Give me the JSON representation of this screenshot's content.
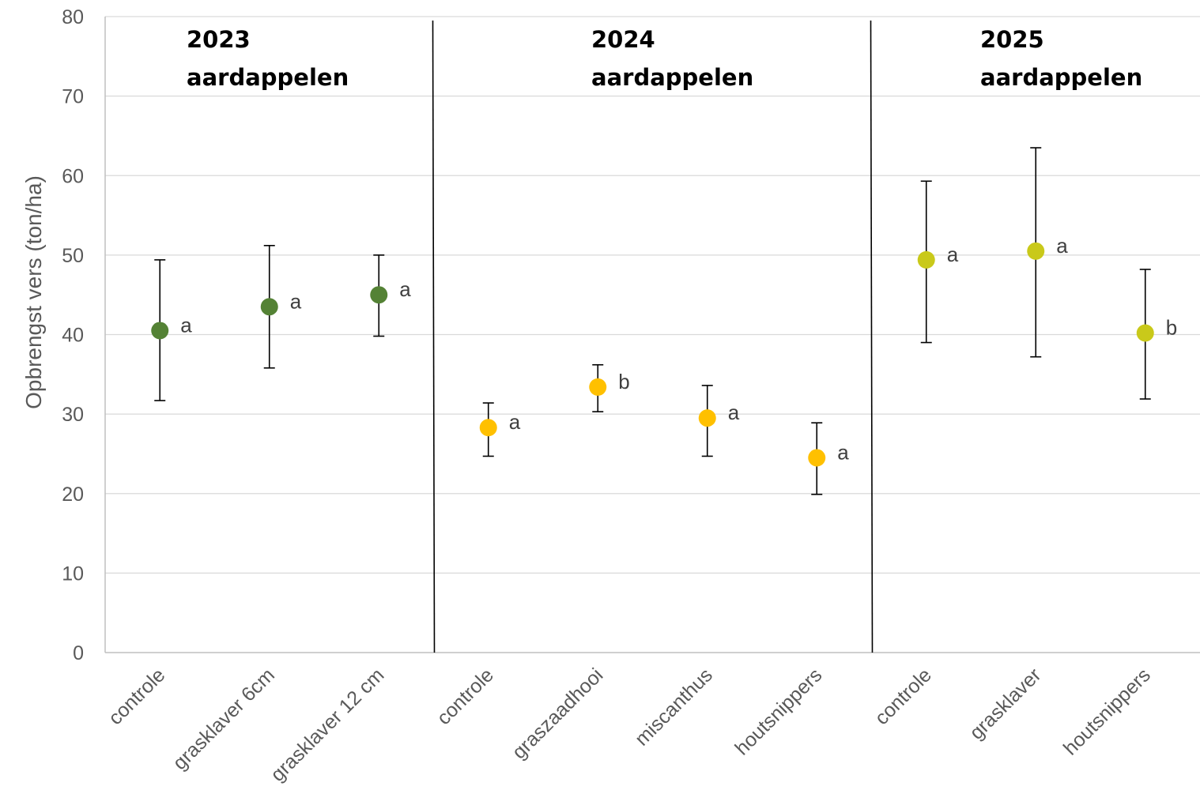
{
  "chart_data": {
    "type": "scatter",
    "ylabel": "Opbrengst vers (ton/ha)",
    "ylim": [
      0,
      80
    ],
    "yticks": [
      0,
      10,
      20,
      30,
      40,
      50,
      60,
      70,
      80
    ],
    "grid": true,
    "error_bars": true,
    "groups": [
      {
        "title_line1": "2023",
        "title_line2": "aardappelen",
        "color": "#548235",
        "points": [
          {
            "category": "controle",
            "value": 40.5,
            "err_low": 31.7,
            "err_high": 49.4,
            "letter": "a"
          },
          {
            "category": "grasklaver 6cm",
            "value": 43.5,
            "err_low": 35.8,
            "err_high": 51.2,
            "letter": "a"
          },
          {
            "category": "grasklaver 12 cm",
            "value": 45.0,
            "err_low": 39.8,
            "err_high": 50.0,
            "letter": "a"
          }
        ]
      },
      {
        "title_line1": "2024",
        "title_line2": "aardappelen",
        "color": "#FFC000",
        "points": [
          {
            "category": "controle",
            "value": 28.3,
            "err_low": 24.7,
            "err_high": 31.4,
            "letter": "a"
          },
          {
            "category": "graszaadhooi",
            "value": 33.4,
            "err_low": 30.3,
            "err_high": 36.2,
            "letter": "b"
          },
          {
            "category": "miscanthus",
            "value": 29.5,
            "err_low": 24.7,
            "err_high": 33.6,
            "letter": "a"
          },
          {
            "category": "houtsnippers",
            "value": 24.5,
            "err_low": 19.9,
            "err_high": 28.9,
            "letter": "a"
          }
        ]
      },
      {
        "title_line1": "2025",
        "title_line2": "aardappelen",
        "color": "#C9C91A",
        "points": [
          {
            "category": "controle",
            "value": 49.4,
            "err_low": 39.0,
            "err_high": 59.3,
            "letter": "a"
          },
          {
            "category": "grasklaver",
            "value": 50.5,
            "err_low": 37.2,
            "err_high": 63.5,
            "letter": "a"
          },
          {
            "category": "houtsnippers",
            "value": 40.2,
            "err_low": 31.9,
            "err_high": 48.2,
            "letter": "b"
          }
        ]
      }
    ]
  }
}
